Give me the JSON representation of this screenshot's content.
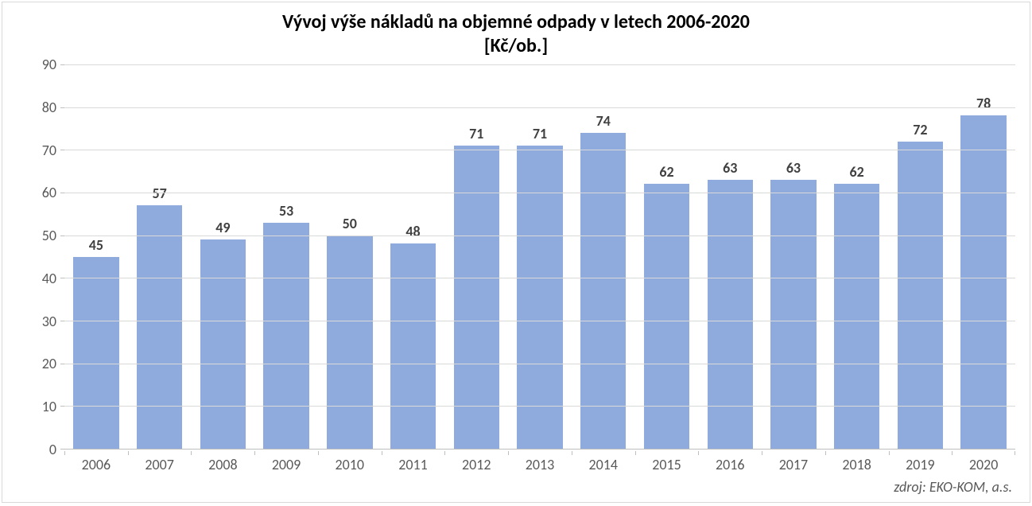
{
  "chart": {
    "type": "bar",
    "title_line1": "Vývoj výše nákladů na objemné odpady v letech 2006-2020",
    "title_line2": "[Kč/ob.]",
    "title_fontsize": 24,
    "title_fontweight": "bold",
    "title_color": "#000000",
    "categories": [
      "2006",
      "2007",
      "2008",
      "2009",
      "2010",
      "2011",
      "2012",
      "2013",
      "2014",
      "2015",
      "2016",
      "2017",
      "2018",
      "2019",
      "2020"
    ],
    "values": [
      45,
      57,
      49,
      53,
      50,
      48,
      71,
      71,
      74,
      62,
      63,
      63,
      62,
      72,
      78
    ],
    "data_labels": [
      "45",
      "57",
      "49",
      "53",
      "50",
      "48",
      "71",
      "71",
      "74",
      "62",
      "63",
      "63",
      "62",
      "72",
      "78"
    ],
    "bar_color": "#8faadc",
    "data_label_color": "#404040",
    "data_label_fontsize": 18,
    "data_label_fontweight": "bold",
    "axis_label_color": "#595959",
    "axis_label_fontsize": 18,
    "ylim": [
      0,
      90
    ],
    "ytick_step": 10,
    "yticks": [
      0,
      10,
      20,
      30,
      40,
      50,
      60,
      70,
      80,
      90
    ],
    "grid": true,
    "grid_color": "#d9d9d9",
    "axis_line_color": "#bfbfbf",
    "background_color": "#ffffff",
    "border_color": "#d9d9d9",
    "bar_width_ratio": 0.72,
    "source_text": "zdroj: EKO-KOM, a.s.",
    "source_fontstyle": "italic",
    "source_color": "#595959",
    "source_fontsize": 18
  }
}
